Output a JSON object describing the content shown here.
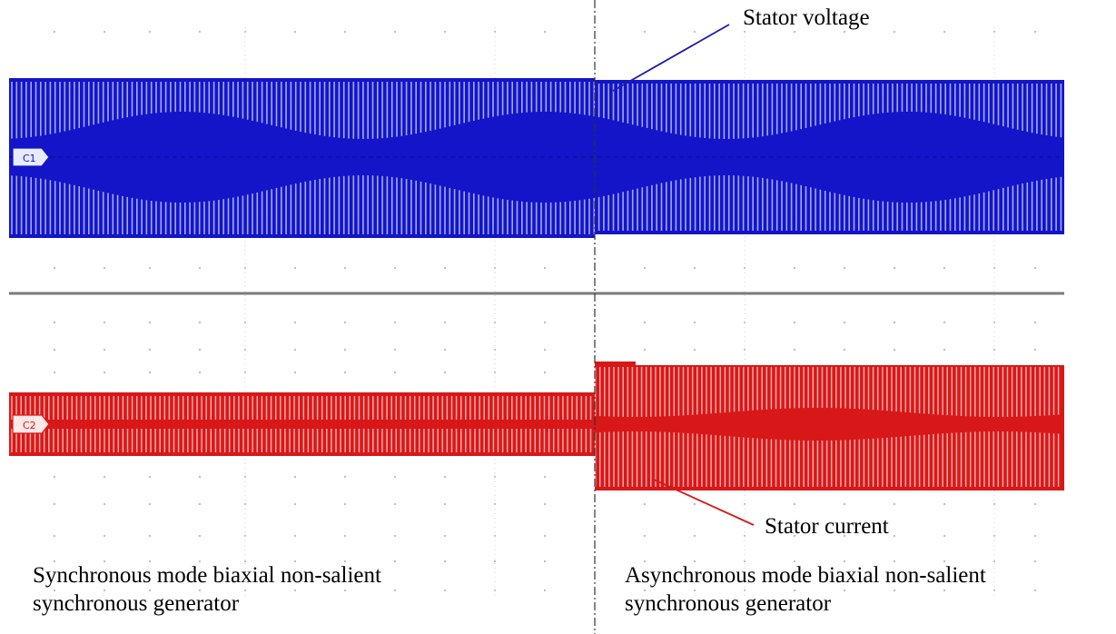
{
  "chart_data": [
    {
      "type": "line",
      "title": "",
      "xlabel": "",
      "ylabel": "",
      "grid": true,
      "series": [
        {
          "name": "Stator voltage",
          "channel": "C1",
          "color": "#1414c8",
          "segments": [
            {
              "mode": "Synchronous mode biaxial non-salient synchronous generator",
              "envelope": "constant",
              "modulation": "beating"
            },
            {
              "mode": "Asynchronous mode biaxial non-salient synchronous generator",
              "envelope": "constant",
              "modulation": "beating"
            }
          ]
        },
        {
          "name": "Stator current",
          "channel": "C2",
          "color": "#d81818",
          "segments": [
            {
              "mode": "Synchronous mode biaxial non-salient synchronous generator",
              "envelope": "small"
            },
            {
              "mode": "Asynchronous mode biaxial non-salient synchronous generator",
              "envelope": "large"
            }
          ]
        }
      ]
    }
  ],
  "annotations": {
    "voltage_label": "Stator voltage",
    "current_label": "Stator current",
    "sync_line1": "Synchronous mode biaxial non-salient",
    "sync_line2": "synchronous generator",
    "async_line1": "Asynchronous mode biaxial non-salient",
    "async_line2": "synchronous generator"
  },
  "channels": {
    "c1": "C1",
    "c2": "C2"
  }
}
